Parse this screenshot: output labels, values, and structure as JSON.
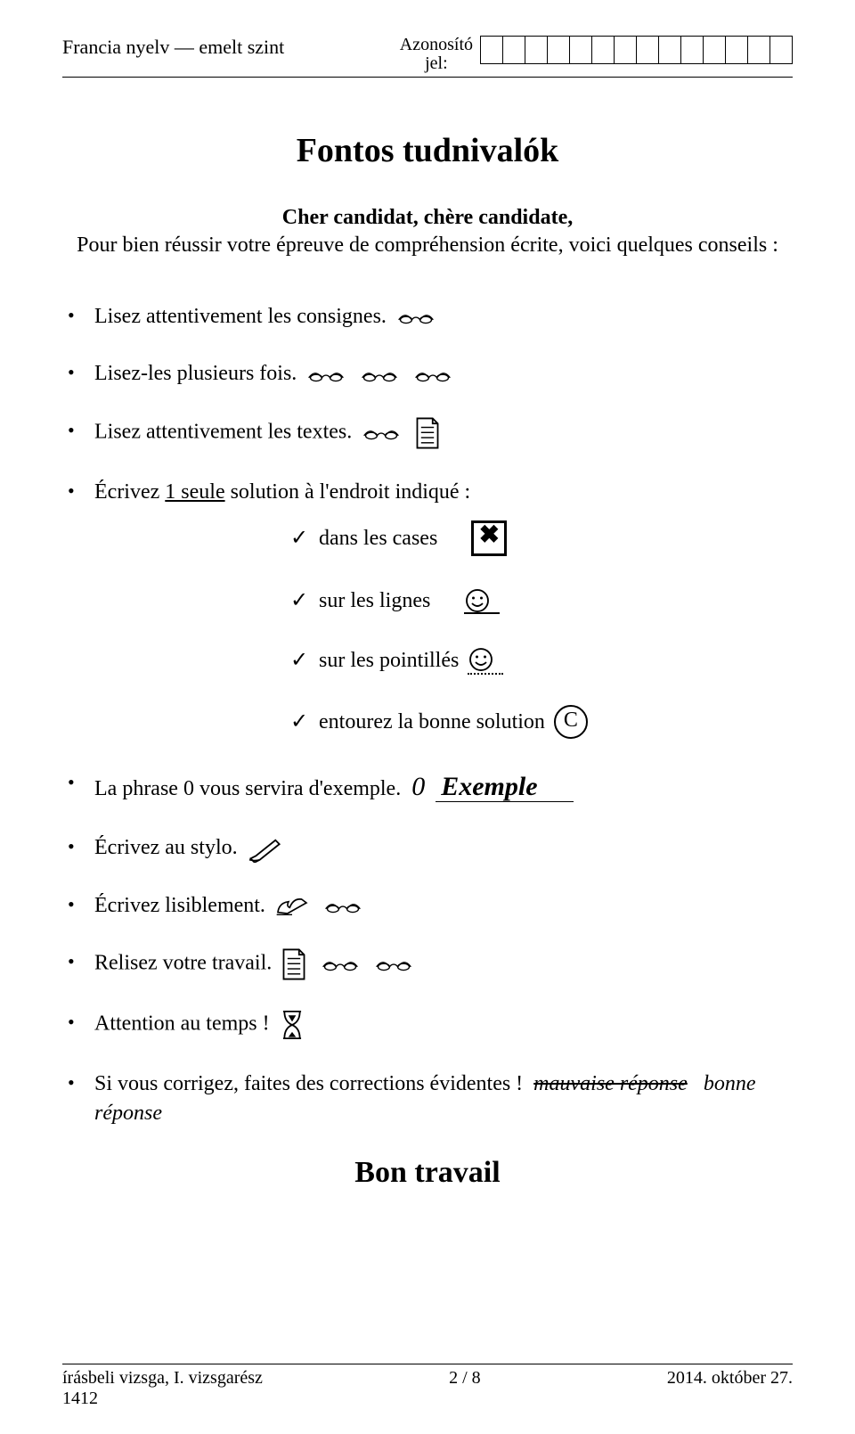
{
  "header": {
    "left": "Francia nyelv — emelt szint",
    "mid1": "Azonosító",
    "mid2": "jel:",
    "id_cells": 14
  },
  "title": "Fontos tudnivalók",
  "greeting": "Cher candidat, chère candidate,",
  "intro": "Pour bien réussir votre épreuve de compréhension écrite, voici quelques conseils :",
  "b1": "Lisez attentivement les consignes.",
  "b2": "Lisez-les plusieurs fois.",
  "b3": "Lisez attentivement les textes.",
  "b4_pre": "Écrivez ",
  "b4_u": "1 seule",
  "b4_post": " solution à l'endroit indiqué :",
  "s1": "dans les cases",
  "s2": "sur les lignes",
  "s3": "sur les pointillés",
  "s4": "entourez la bonne solution",
  "b5_pre": "La phrase 0 vous servira d'exemple.",
  "b5_zero": "0",
  "b5_ex": "Exemple",
  "b6": "Écrivez au stylo.",
  "b7": "Écrivez lisiblement.",
  "b8": "Relisez votre travail.",
  "b9": "Attention au temps !",
  "b10": "Si vous corrigez, faites des corrections évidentes !",
  "b10_bad": "mauvaise réponse",
  "b10_good": "bonne réponse",
  "bon": "Bon travail",
  "footer": {
    "left1": "írásbeli vizsga, I. vizsgarész",
    "left2": "1412",
    "mid": "2 / 8",
    "right": "2014. október 27."
  },
  "circleC": "C",
  "xmark": "✖",
  "check": "✓"
}
